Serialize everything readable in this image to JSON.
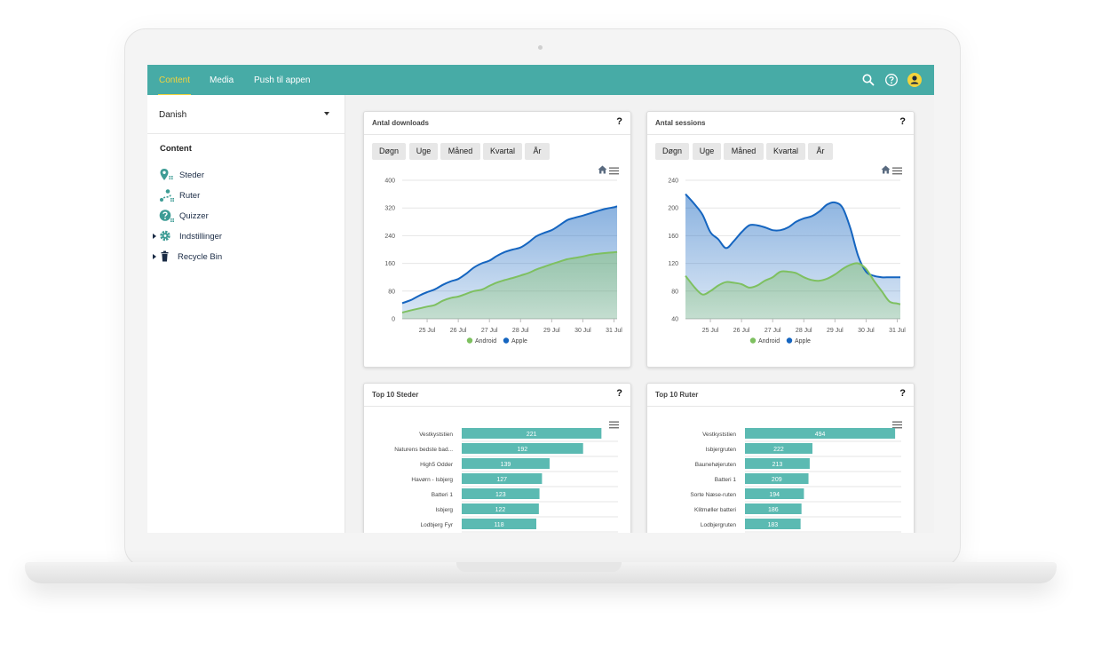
{
  "topbar": {
    "tabs": [
      {
        "label": "Content",
        "active": true
      },
      {
        "label": "Media",
        "active": false
      },
      {
        "label": "Push til appen",
        "active": false
      }
    ],
    "icons": [
      "search-icon",
      "help-icon",
      "user-icon"
    ],
    "color": "#47aba6",
    "active_color": "#f3d33c"
  },
  "sidebar": {
    "language": "Danish",
    "heading": "Content",
    "items": [
      {
        "label": "Steder",
        "icon": "location-icon",
        "expandable": false
      },
      {
        "label": "Ruter",
        "icon": "route-icon",
        "expandable": false
      },
      {
        "label": "Quizzer",
        "icon": "quiz-icon",
        "expandable": false
      },
      {
        "label": "Indstillinger",
        "icon": "gear-icon",
        "expandable": true
      },
      {
        "label": "Recycle Bin",
        "icon": "trash-icon",
        "expandable": true
      }
    ]
  },
  "cards": {
    "downloads": {
      "title": "Antal downloads",
      "help": "?"
    },
    "sessions": {
      "title": "Antal sessions",
      "help": "?"
    },
    "top_steder": {
      "title": "Top 10 Steder",
      "help": "?"
    },
    "top_ruter": {
      "title": "Top 10 Ruter",
      "help": "?"
    }
  },
  "period_buttons": [
    "Døgn",
    "Uge",
    "Måned",
    "Kvartal",
    "År"
  ],
  "chart_data": [
    {
      "type": "area",
      "categories": [
        "25 Jul",
        "26 Jul",
        "27 Jul",
        "28 Jul",
        "29 Jul",
        "30 Jul",
        "31 Jul"
      ],
      "ylim": [
        0,
        400
      ],
      "yticks": [
        0,
        80,
        160,
        240,
        320,
        400
      ],
      "x": [
        24.2,
        24.5,
        24.75,
        25,
        25.25,
        25.5,
        25.75,
        26,
        26.25,
        26.5,
        26.75,
        27,
        27.25,
        27.5,
        27.75,
        28,
        28.25,
        28.5,
        28.75,
        29,
        29.25,
        29.5,
        29.75,
        30,
        30.25,
        30.5,
        30.75,
        31,
        31.1
      ],
      "series": [
        {
          "name": "Android",
          "color": "#7ec060",
          "values": [
            18,
            25,
            30,
            35,
            40,
            52,
            60,
            64,
            72,
            80,
            84,
            95,
            105,
            112,
            118,
            125,
            132,
            142,
            150,
            158,
            165,
            172,
            176,
            180,
            185,
            188,
            190,
            192,
            193
          ]
        },
        {
          "name": "Apple",
          "color": "#1565c0",
          "values": [
            45,
            55,
            67,
            77,
            85,
            98,
            108,
            115,
            130,
            148,
            160,
            168,
            182,
            193,
            200,
            206,
            220,
            238,
            248,
            256,
            270,
            285,
            292,
            298,
            305,
            312,
            318,
            322,
            325
          ]
        }
      ],
      "legend": "bottom-center",
      "grid": true
    },
    {
      "type": "area",
      "categories": [
        "25 Jul",
        "26 Jul",
        "27 Jul",
        "28 Jul",
        "29 Jul",
        "30 Jul",
        "31 Jul"
      ],
      "ylim": [
        40,
        240
      ],
      "yticks": [
        40,
        80,
        120,
        160,
        200,
        240
      ],
      "x": [
        24.2,
        24.5,
        24.75,
        25,
        25.25,
        25.5,
        25.75,
        26,
        26.25,
        26.5,
        26.75,
        27,
        27.25,
        27.5,
        27.75,
        28,
        28.25,
        28.5,
        28.75,
        29,
        29.25,
        29.5,
        29.75,
        30,
        30.25,
        30.5,
        30.75,
        31,
        31.1
      ],
      "series": [
        {
          "name": "Android",
          "color": "#7ec060",
          "values": [
            102,
            85,
            75,
            80,
            88,
            93,
            92,
            90,
            85,
            88,
            95,
            100,
            108,
            108,
            106,
            100,
            96,
            95,
            98,
            104,
            112,
            118,
            120,
            112,
            95,
            80,
            65,
            62,
            61
          ]
        },
        {
          "name": "Apple",
          "color": "#1565c0",
          "values": [
            220,
            205,
            190,
            165,
            155,
            142,
            152,
            165,
            175,
            175,
            172,
            168,
            168,
            172,
            180,
            185,
            188,
            195,
            205,
            208,
            200,
            170,
            130,
            108,
            102,
            100,
            100,
            100,
            100
          ]
        }
      ],
      "legend": "bottom-center",
      "grid": true
    },
    {
      "type": "bar",
      "orientation": "horizontal",
      "categories": [
        "Vestkyststien",
        "Naturens bedste bad...",
        "High5 Odder",
        "Havørn - Isbjerg",
        "Batteri 1",
        "Isbjerg",
        "Lodbjerg Fyr"
      ],
      "values": [
        221,
        192,
        139,
        127,
        123,
        122,
        118
      ],
      "xlim": [
        0,
        250
      ],
      "color": "#5bbab2"
    },
    {
      "type": "bar",
      "orientation": "horizontal",
      "categories": [
        "Vestkyststien",
        "Isbjergruten",
        "Baunehøjeruten",
        "Batteri 1",
        "Sorte Næse-ruten",
        "Klitmøller batteri",
        "Lodbjergruten"
      ],
      "values": [
        494,
        222,
        213,
        209,
        194,
        186,
        183
      ],
      "xlim": [
        0,
        520
      ],
      "color": "#5bbab2"
    }
  ]
}
